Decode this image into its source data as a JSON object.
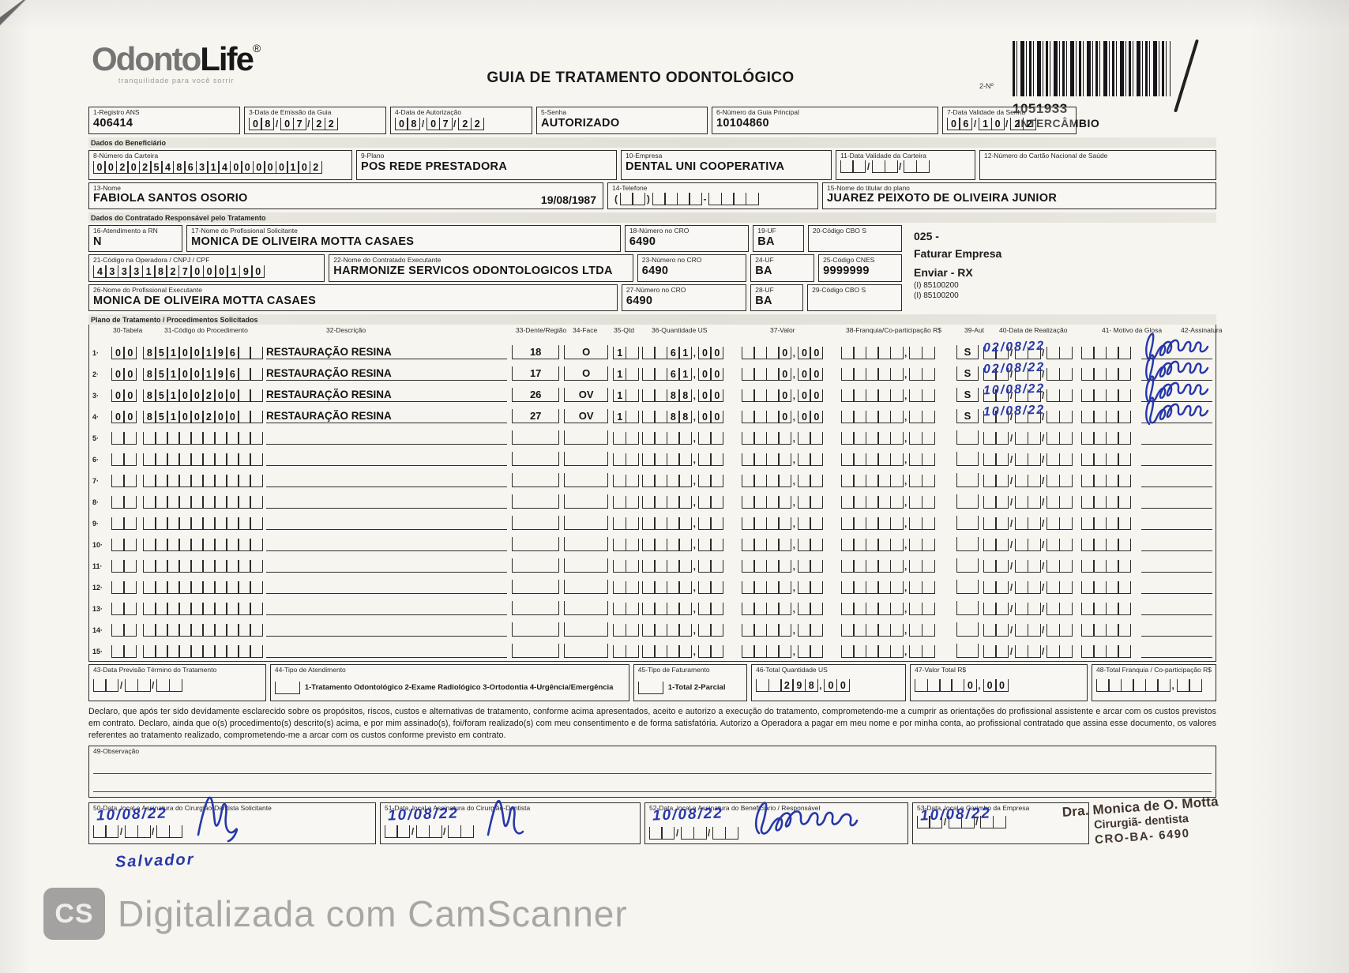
{
  "colors": {
    "ink_blue": "#2738a9",
    "paper": "#f7f5f0",
    "line": "#2e2c2a"
  },
  "header": {
    "logo_part1": "Odonto",
    "logo_part2": "Life",
    "logo_reg": "®",
    "tagline": "tranquilidade para você sorrir",
    "title": "GUIA DE TRATAMENTO ODONTOLÓGICO",
    "barcode_label": "2-Nº",
    "guide_number": "1051933",
    "guide_type": "INTERCÂMBIO"
  },
  "combs": {
    "empty_date": "  /  /  "
  },
  "fields": {
    "f1": {
      "label": "1-Registro ANS",
      "value": "406414"
    },
    "f3": {
      "label": "3-Data de Emissão da Guia",
      "value": "08/07/22"
    },
    "f4": {
      "label": "4-Data de Autorização",
      "value": "08/07/22"
    },
    "f5": {
      "label": "5-Senha",
      "value": "AUTORIZADO"
    },
    "f6": {
      "label": "6-Número da Guia Principal",
      "value": "10104860"
    },
    "f7": {
      "label": "7-Data Validade da Senha",
      "value": "06/10/22"
    },
    "f8": {
      "label": "8-Número da Carteira",
      "value": "00202548631400000102"
    },
    "f9": {
      "label": "9-Plano",
      "value": "POS REDE PRESTADORA"
    },
    "f10": {
      "label": "10-Empresa",
      "value": "DENTAL UNI  COOPERATIVA"
    },
    "f11": {
      "label": "11-Data Validade da Carteira",
      "value": "  /  /  "
    },
    "f12": {
      "label": "12-Número do Cartão Nacional de Saúde",
      "value": ""
    },
    "f13": {
      "label": "13-Nome",
      "value": "FABIOLA SANTOS OSORIO",
      "birth_date": "19/08/1987"
    },
    "f14": {
      "label": "14-Telefone",
      "value": "(  )    -    "
    },
    "f15": {
      "label": "15-Nome do titular do plano",
      "value": "JUAREZ PEIXOTO DE OLIVEIRA JUNIOR"
    },
    "f16": {
      "label": "16-Atendimento a RN",
      "value": "N"
    },
    "f17": {
      "label": "17-Nome do Profissional Solicitante",
      "value": "MONICA DE OLIVEIRA MOTTA CASAES"
    },
    "f18": {
      "label": "18-Número no CRO",
      "value": "6490"
    },
    "f19": {
      "label": "19-UF",
      "value": "BA"
    },
    "f20": {
      "label": "20-Código CBO S",
      "value": ""
    },
    "f21": {
      "label": "21-Código na Operadora / CNPJ / CPF",
      "value": "43331827000190"
    },
    "f22": {
      "label": "22-Nome do Contratado Executante",
      "value": "HARMONIZE SERVICOS ODONTOLOGICOS LTDA"
    },
    "f23": {
      "label": "23-Número no CRO",
      "value": "6490"
    },
    "f24": {
      "label": "24-UF",
      "value": "BA"
    },
    "f25": {
      "label": "25-Código CNES",
      "value": "9999999"
    },
    "f26": {
      "label": "26-Nome do Profissional Executante",
      "value": "MONICA DE OLIVEIRA MOTTA CASAES"
    },
    "f27": {
      "label": "27-Número no CRO",
      "value": "6490"
    },
    "f28": {
      "label": "28-UF",
      "value": "BA"
    },
    "f29": {
      "label": "29-Código CBO S",
      "value": ""
    }
  },
  "sections": {
    "beneficiario": "Dados do Beneficiário",
    "contratado": "Dados do Contratado Responsável pelo Tratamento",
    "plano": "Plano de Tratamento / Procedimentos Solicitados"
  },
  "side_notes": {
    "n1": "025 -",
    "n2": "Faturar Empresa",
    "n3": "Enviar - RX",
    "n4": "(I) 85100200",
    "n5": "(I) 85100200"
  },
  "table": {
    "headers": {
      "h30": "30-Tabela",
      "h31": "31-Código do Procedimento",
      "h32": "32-Descrição",
      "h33": "33-Dente/Região",
      "h34": "34-Face",
      "h35": "35-Qtd",
      "h36": "36-Quantidade US",
      "h37": "37-Valor",
      "h38": "38-Franquia/Co-participação R$",
      "h39": "39-Aut",
      "h40": "40-Data de Realização",
      "h41": "41- Motivo da Glosa",
      "h42": "42-Assinatura"
    },
    "rows": [
      {
        "num": "1",
        "tabela": "00",
        "codigo": "85100196  ",
        "desc": "RESTAURAÇÃO RESINA",
        "dente": "18",
        "face": "O",
        "qtd": "1 ",
        "qus": "  61,00",
        "valor": "   0,00",
        "franquia": "     ,  ",
        "aut": "S",
        "data": "02/08/22",
        "motivo": "    ",
        "signed": true
      },
      {
        "num": "2",
        "tabela": "00",
        "codigo": "85100196  ",
        "desc": "RESTAURAÇÃO RESINA",
        "dente": "17",
        "face": "O",
        "qtd": "1 ",
        "qus": "  61,00",
        "valor": "   0,00",
        "franquia": "     ,  ",
        "aut": "S",
        "data": "02/08/22",
        "motivo": "    ",
        "signed": true
      },
      {
        "num": "3",
        "tabela": "00",
        "codigo": "85100200  ",
        "desc": "RESTAURAÇÃO RESINA",
        "dente": "26",
        "face": "OV",
        "qtd": "1 ",
        "qus": "  88,00",
        "valor": "   0,00",
        "franquia": "     ,  ",
        "aut": "S",
        "data": "10/08/22",
        "motivo": "    ",
        "signed": true
      },
      {
        "num": "4",
        "tabela": "00",
        "codigo": "85100200  ",
        "desc": "RESTAURAÇÃO RESINA",
        "dente": "27",
        "face": "OV",
        "qtd": "1 ",
        "qus": "  88,00",
        "valor": "   0,00",
        "franquia": "     ,  ",
        "aut": "S",
        "data": "10/08/22",
        "motivo": "    ",
        "signed": true
      },
      {
        "num": "5",
        "tabela": "  ",
        "codigo": "          ",
        "desc": "",
        "dente": "",
        "face": "",
        "qtd": "  ",
        "qus": "    ,  ",
        "valor": "    ,  ",
        "franquia": "     ,  ",
        "aut": "",
        "data": "",
        "motivo": "    ",
        "signed": false
      },
      {
        "num": "6",
        "tabela": "  ",
        "codigo": "          ",
        "desc": "",
        "dente": "",
        "face": "",
        "qtd": "  ",
        "qus": "    ,  ",
        "valor": "    ,  ",
        "franquia": "     ,  ",
        "aut": "",
        "data": "",
        "motivo": "    ",
        "signed": false
      },
      {
        "num": "7",
        "tabela": "  ",
        "codigo": "          ",
        "desc": "",
        "dente": "",
        "face": "",
        "qtd": "  ",
        "qus": "    ,  ",
        "valor": "    ,  ",
        "franquia": "     ,  ",
        "aut": "",
        "data": "",
        "motivo": "    ",
        "signed": false
      },
      {
        "num": "8",
        "tabela": "  ",
        "codigo": "          ",
        "desc": "",
        "dente": "",
        "face": "",
        "qtd": "  ",
        "qus": "    ,  ",
        "valor": "    ,  ",
        "franquia": "     ,  ",
        "aut": "",
        "data": "",
        "motivo": "    ",
        "signed": false
      },
      {
        "num": "9",
        "tabela": "  ",
        "codigo": "          ",
        "desc": "",
        "dente": "",
        "face": "",
        "qtd": "  ",
        "qus": "    ,  ",
        "valor": "    ,  ",
        "franquia": "     ,  ",
        "aut": "",
        "data": "",
        "motivo": "    ",
        "signed": false
      },
      {
        "num": "10",
        "tabela": "  ",
        "codigo": "          ",
        "desc": "",
        "dente": "",
        "face": "",
        "qtd": "  ",
        "qus": "    ,  ",
        "valor": "    ,  ",
        "franquia": "     ,  ",
        "aut": "",
        "data": "",
        "motivo": "    ",
        "signed": false
      },
      {
        "num": "11",
        "tabela": "  ",
        "codigo": "          ",
        "desc": "",
        "dente": "",
        "face": "",
        "qtd": "  ",
        "qus": "    ,  ",
        "valor": "    ,  ",
        "franquia": "     ,  ",
        "aut": "",
        "data": "",
        "motivo": "    ",
        "signed": false
      },
      {
        "num": "12",
        "tabela": "  ",
        "codigo": "          ",
        "desc": "",
        "dente": "",
        "face": "",
        "qtd": "  ",
        "qus": "    ,  ",
        "valor": "    ,  ",
        "franquia": "     ,  ",
        "aut": "",
        "data": "",
        "motivo": "    ",
        "signed": false
      },
      {
        "num": "13",
        "tabela": "  ",
        "codigo": "          ",
        "desc": "",
        "dente": "",
        "face": "",
        "qtd": "  ",
        "qus": "    ,  ",
        "valor": "    ,  ",
        "franquia": "     ,  ",
        "aut": "",
        "data": "",
        "motivo": "    ",
        "signed": false
      },
      {
        "num": "14",
        "tabela": "  ",
        "codigo": "          ",
        "desc": "",
        "dente": "",
        "face": "",
        "qtd": "  ",
        "qus": "    ,  ",
        "valor": "    ,  ",
        "franquia": "     ,  ",
        "aut": "",
        "data": "",
        "motivo": "    ",
        "signed": false
      },
      {
        "num": "15",
        "tabela": "  ",
        "codigo": "          ",
        "desc": "",
        "dente": "",
        "face": "",
        "qtd": "  ",
        "qus": "    ,  ",
        "valor": "    ,  ",
        "franquia": "     ,  ",
        "aut": "",
        "data": "",
        "motivo": "    ",
        "signed": false
      }
    ]
  },
  "totals": {
    "f43": {
      "label": "43-Data Previsão Término do Tratamento",
      "value": "  /  /  "
    },
    "f44": {
      "label": "44-Tipo de Atendimento",
      "options": "1-Tratamento Odontológico  2-Exame Radiológico  3-Ortodontia  4-Urgência/Emergência"
    },
    "f45": {
      "label": "45-Tipo de Faturamento",
      "options": "1-Total  2-Parcial"
    },
    "f46": {
      "label": "46-Total Quantidade US",
      "value": "  298,00"
    },
    "f47": {
      "label": "47-Valor Total R$",
      "value": "    0,00"
    },
    "f48": {
      "label": "48-Total Franquia / Co-participação R$",
      "value": "      ,  "
    }
  },
  "declaration": "Declaro, que após ter sido devidamente esclarecido sobre os propósitos, riscos, custos e alternativas de tratamento, conforme acima apresentados, aceito e autorizo a execução do tratamento, comprometendo-me a cumprir as orientações do profissional assistente e arcar com os custos previstos em contrato. Declaro, ainda que o(s) procedimento(s) descrito(s) acima, e por mim assinado(s), foi/foram realizado(s) com meu consentimento e de forma satisfatória. Autorizo a Operadora a pagar em meu nome e por minha conta, ao profissional contratado que assina esse documento, os valores referentes ao tratamento realizado, comprometendo-me a arcar com os custos conforme previsto em contrato.",
  "observacao": {
    "label": "49-Observação"
  },
  "signatures": {
    "f50": {
      "label": "50-Data, local e Assinatura do Cirurgião-Dentista Solicitante",
      "date": "10/08/22",
      "place": "Salvador"
    },
    "f51": {
      "label": "51-Data, local e Assinatura do Cirurgião-Dentista",
      "date": "10/08/22"
    },
    "f52": {
      "label": "52-Data, local e Assinatura do Beneficiário / Responsável",
      "date": "10/08/22"
    },
    "f53": {
      "label": "53-Data, local e Carimbo da Empresa",
      "date": "10/08/22"
    },
    "stamp": {
      "line1": "Dra. Monica de O. Motta",
      "line2": "Cirurgiã- dentista",
      "line3": "CRO-BA- 6490"
    }
  },
  "watermark": {
    "logo": "CS",
    "text": "Digitalizada com CamScanner"
  }
}
